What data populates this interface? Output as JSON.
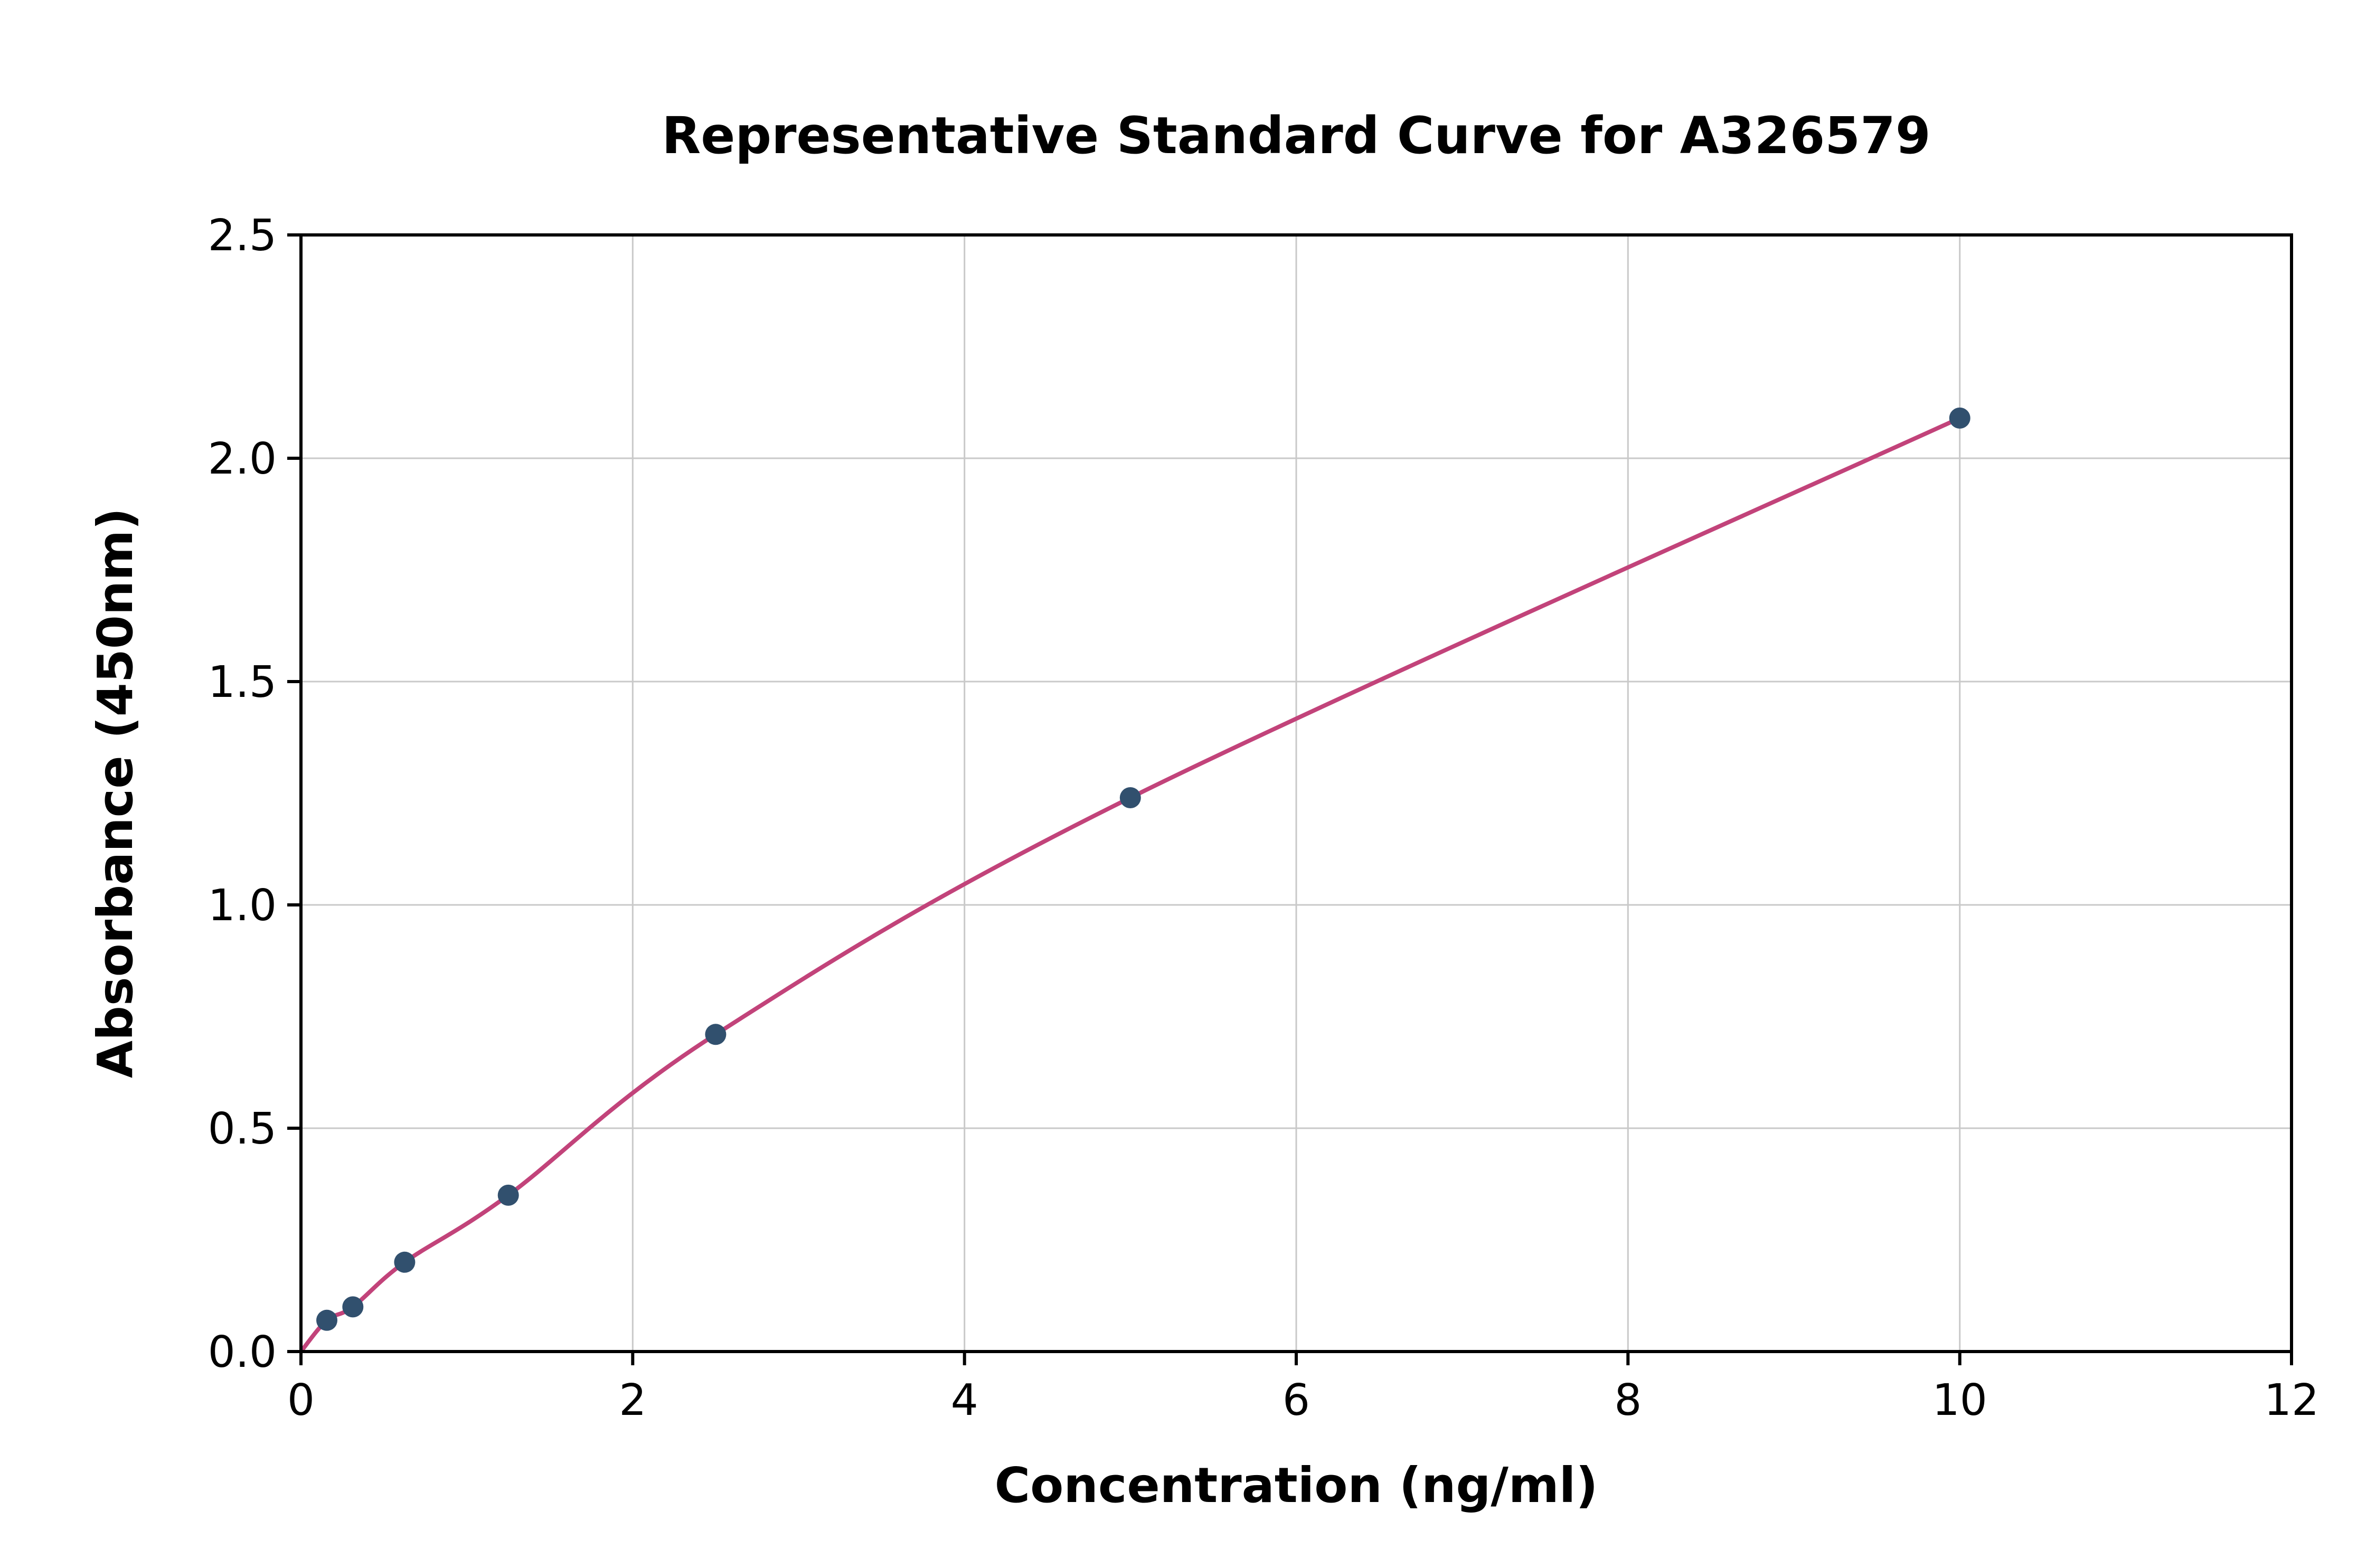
{
  "chart_data": {
    "type": "scatter",
    "title": "Representative Standard Curve for A326579",
    "xlabel": "Concentration (ng/ml)",
    "ylabel": "Absorbance (450nm)",
    "xlim": [
      0,
      12
    ],
    "ylim": [
      0,
      2.5
    ],
    "x_ticks": [
      0,
      2,
      4,
      6,
      8,
      10,
      12
    ],
    "x_tick_labels": [
      "0",
      "2",
      "4",
      "6",
      "8",
      "10",
      "12"
    ],
    "y_ticks": [
      0.0,
      0.5,
      1.0,
      1.5,
      2.0,
      2.5
    ],
    "y_tick_labels": [
      "0.0",
      "0.5",
      "1.0",
      "1.5",
      "2.0",
      "2.5"
    ],
    "grid": true,
    "legend": "none",
    "series": [
      {
        "name": "standard-points",
        "type": "scatter",
        "x": [
          0.156,
          0.313,
          0.625,
          1.25,
          2.5,
          5,
          10
        ],
        "y": [
          0.07,
          0.1,
          0.2,
          0.35,
          0.71,
          1.24,
          2.09
        ]
      },
      {
        "name": "fitted-curve",
        "type": "line",
        "x": [
          0,
          0.156,
          0.313,
          0.625,
          1.25,
          2.5,
          5,
          10
        ],
        "y": [
          0.0,
          0.07,
          0.1,
          0.2,
          0.35,
          0.71,
          1.24,
          2.09
        ]
      }
    ],
    "colors": {
      "curve": "#c2437a",
      "points": "#31506e",
      "grid": "#c9c9c9",
      "axis": "#000000",
      "background": "#ffffff"
    }
  }
}
